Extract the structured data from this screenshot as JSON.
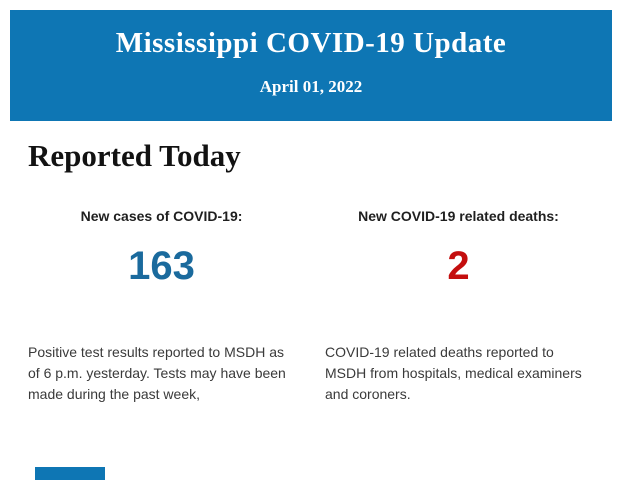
{
  "header": {
    "title": "Mississippi COVID-19 Update",
    "date": "April 01, 2022",
    "background_color": "#0e76b4",
    "text_color": "#ffffff"
  },
  "section": {
    "heading": "Reported Today"
  },
  "stats": {
    "cases": {
      "label": "New cases of COVID-19:",
      "value": "163",
      "value_color": "#1a6a9d",
      "description": "Positive test results reported to MSDH as of 6 p.m. yesterday. Tests may have been made during the past week,"
    },
    "deaths": {
      "label": "New COVID-19 related deaths:",
      "value": "2",
      "value_color": "#c40e0e",
      "description": "COVID-19 related deaths reported to MSDH from hospitals, medical examiners and coroners."
    }
  },
  "footer": {
    "partial_bar_color": "#0e76b4"
  }
}
